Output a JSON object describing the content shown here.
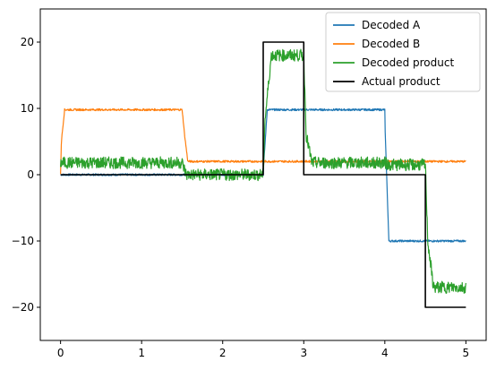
{
  "chart_data": {
    "type": "line",
    "title": "",
    "xlabel": "",
    "ylabel": "",
    "xlim": [
      -0.25,
      5.25
    ],
    "ylim": [
      -25,
      25
    ],
    "x_ticks": [
      0,
      1,
      2,
      3,
      4,
      5
    ],
    "x_tick_labels": [
      "0",
      "1",
      "2",
      "3",
      "4",
      "5"
    ],
    "y_ticks": [
      -20,
      -10,
      0,
      10,
      20
    ],
    "y_tick_labels": [
      "−20",
      "−10",
      "0",
      "10",
      "20"
    ],
    "grid": false,
    "legend_position": "top-right",
    "series": [
      {
        "name": "Decoded A",
        "color": "#1f77b4",
        "noise": 0.15,
        "x": [
          0,
          2.5,
          2.5,
          2.55,
          4.0,
          4.0,
          4.05,
          5.0
        ],
        "y": [
          0,
          0,
          0.5,
          9.8,
          9.8,
          8.0,
          -10.0,
          -10.0
        ]
      },
      {
        "name": "Decoded B",
        "color": "#ff7f0e",
        "noise": 0.15,
        "x": [
          0,
          0.01,
          0.05,
          1.5,
          1.53,
          1.57,
          5.0
        ],
        "y": [
          0,
          5.0,
          9.8,
          9.8,
          6.0,
          2.0,
          2.0
        ]
      },
      {
        "name": "Decoded product",
        "color": "#2ca02c",
        "noise": 0.9,
        "x": [
          0,
          1.5,
          1.55,
          2.5,
          2.52,
          2.6,
          3.0,
          3.03,
          3.1,
          4.0,
          4.05,
          4.5,
          4.53,
          4.6,
          5.0
        ],
        "y": [
          1.8,
          1.8,
          0,
          0,
          8.0,
          18.0,
          18.0,
          6.0,
          1.8,
          1.8,
          1.5,
          1.5,
          -10.0,
          -17.0,
          -17.0
        ]
      },
      {
        "name": "Actual product",
        "color": "#000000",
        "noise": 0,
        "x": [
          0,
          2.5,
          2.5,
          3.0,
          3.0,
          4.5,
          4.5,
          5.0
        ],
        "y": [
          0,
          0,
          20,
          20,
          0,
          0,
          -20,
          -20
        ]
      }
    ]
  }
}
